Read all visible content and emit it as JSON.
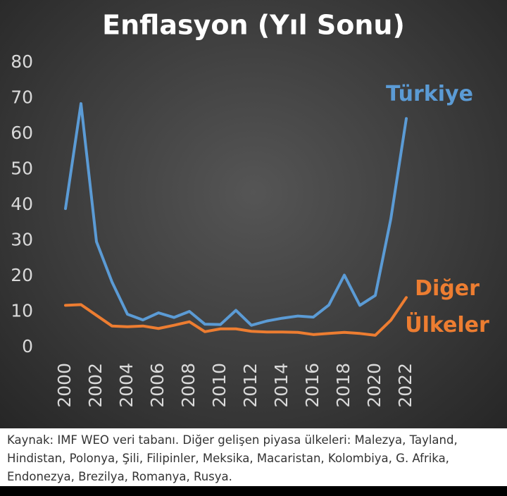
{
  "chart_data": {
    "type": "line",
    "title": "Enflasyon (Yıl Sonu)",
    "x": [
      2000,
      2001,
      2002,
      2003,
      2004,
      2005,
      2006,
      2007,
      2008,
      2009,
      2010,
      2011,
      2012,
      2013,
      2014,
      2015,
      2016,
      2017,
      2018,
      2019,
      2020,
      2021,
      2022
    ],
    "series": [
      {
        "name": "Türkiye",
        "color": "#5b9bd5",
        "values": [
          39.0,
          68.5,
          29.7,
          18.4,
          9.3,
          7.7,
          9.7,
          8.4,
          10.1,
          6.5,
          6.4,
          10.4,
          6.2,
          7.4,
          8.2,
          8.8,
          8.5,
          11.9,
          20.3,
          11.8,
          14.6,
          36.1,
          64.3
        ]
      },
      {
        "name": "Diğer Ülkeler",
        "color": "#ed7d31",
        "values": [
          11.8,
          12.0,
          9.0,
          6.0,
          5.8,
          6.0,
          5.3,
          6.2,
          7.2,
          4.4,
          5.2,
          5.2,
          4.5,
          4.3,
          4.3,
          4.2,
          3.6,
          3.9,
          4.2,
          3.9,
          3.4,
          7.6,
          14.0
        ]
      }
    ],
    "xlim": [
      2000,
      2022
    ],
    "xticks": [
      2000,
      2002,
      2004,
      2006,
      2008,
      2010,
      2012,
      2014,
      2016,
      2018,
      2020,
      2022
    ],
    "ylim": [
      0,
      80
    ],
    "yticks": [
      0,
      10,
      20,
      30,
      40,
      50,
      60,
      70,
      80
    ],
    "grid": false,
    "source": "Kaynak: IMF WEO veri tabanı. Diğer gelişen piyasa ülkeleri: Malezya, Tayland, Hindistan, Polonya, Şili, Filipinler, Meksika, Macaristan, Kolombiya, G. Afrika, Endonezya, Brezilya, Romanya, Rusya."
  }
}
